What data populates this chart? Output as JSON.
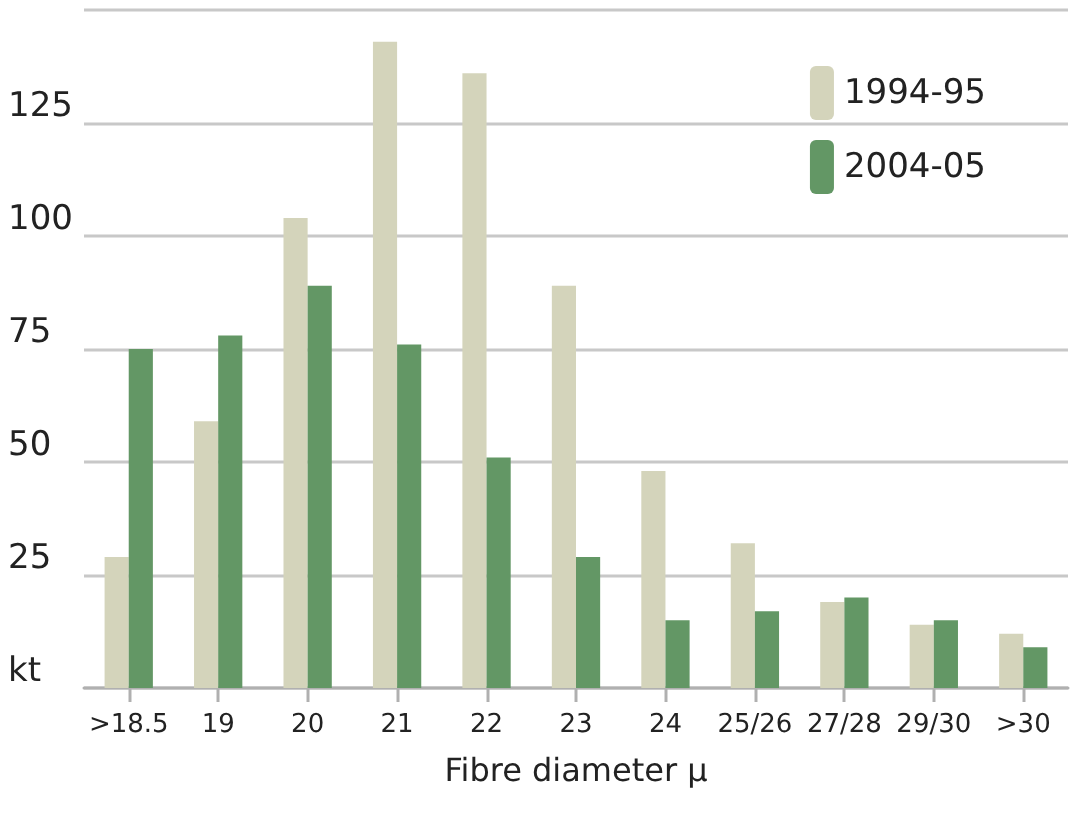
{
  "chart_data": {
    "type": "bar",
    "xlabel": "Fibre diameter μ",
    "categories": [
      ">18.5",
      "19",
      "20",
      "21",
      "22",
      "23",
      "24",
      "25/26",
      "27/28",
      "29/30",
      ">30"
    ],
    "series": [
      {
        "name": "1994-95",
        "color": "#d4d4bb",
        "values": [
          29,
          59,
          104,
          143,
          136,
          89,
          48,
          32,
          19,
          14,
          12
        ]
      },
      {
        "name": "2004-05",
        "color": "#639765",
        "values": [
          75,
          78,
          89,
          76,
          51,
          29,
          15,
          17,
          20,
          15,
          9
        ]
      }
    ],
    "ylim": [
      0,
      150
    ],
    "yticks": [
      {
        "value": 0,
        "label": "kt"
      },
      25,
      50,
      75,
      100,
      125,
      {
        "value": 150,
        "label": null
      }
    ],
    "grid": "y",
    "legend": "top right"
  }
}
